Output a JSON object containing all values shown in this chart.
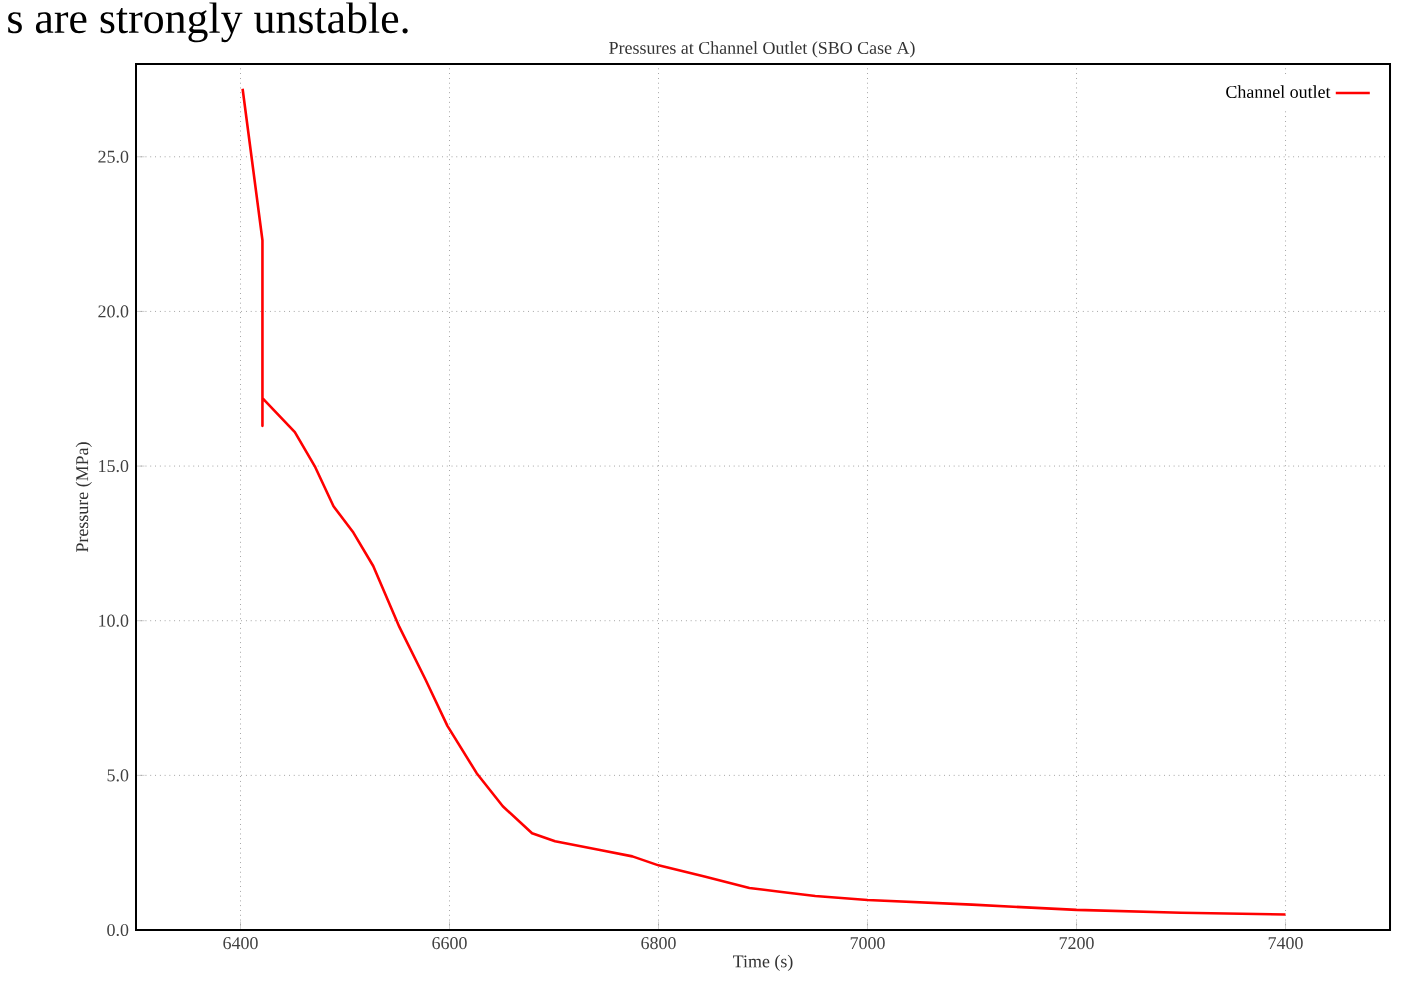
{
  "chart_data": {
    "type": "line",
    "title": "Pressures at Channel Outlet (SBO Case A)",
    "xlabel": "Time (s)",
    "ylabel": "Pressure (MPa)",
    "annotations": [
      "s are strongly unstable."
    ],
    "series": [
      {
        "name": "Channel outlet",
        "color": "#ff0000",
        "x": [
          6402,
          6421,
          6421,
          6421,
          6452,
          6471,
          6489,
          6508,
          6527,
          6552,
          6577,
          6598,
          6626,
          6651,
          6679,
          6701,
          6744,
          6775,
          6800,
          6844,
          6887,
          6918,
          6950,
          7000,
          7100,
          7200,
          7300,
          7400
        ],
        "values": [
          27.2,
          22.3,
          16.3,
          17.2,
          16.1,
          15.0,
          13.7,
          12.85,
          11.77,
          9.8,
          8.1,
          6.6,
          5.07,
          4.0,
          3.13,
          2.87,
          2.59,
          2.38,
          2.09,
          1.73,
          1.36,
          1.23,
          1.1,
          0.97,
          0.82,
          0.65,
          0.56,
          0.5
        ]
      }
    ],
    "xlim": [
      6300,
      7500
    ],
    "ylim": [
      0,
      28
    ],
    "xticks": [
      6400,
      6600,
      6800,
      7000,
      7200,
      7400
    ],
    "yticks": [
      {
        "value": 0,
        "label": "0.0"
      },
      {
        "value": 5,
        "label": "5.0"
      },
      {
        "value": 10,
        "label": "10.0"
      },
      {
        "value": 15,
        "label": "15.0"
      },
      {
        "value": 20,
        "label": "20.0"
      },
      {
        "value": 25,
        "label": "25.0"
      }
    ],
    "grid": true,
    "legend": "top right",
    "marker": "none",
    "line_style": "solid"
  }
}
